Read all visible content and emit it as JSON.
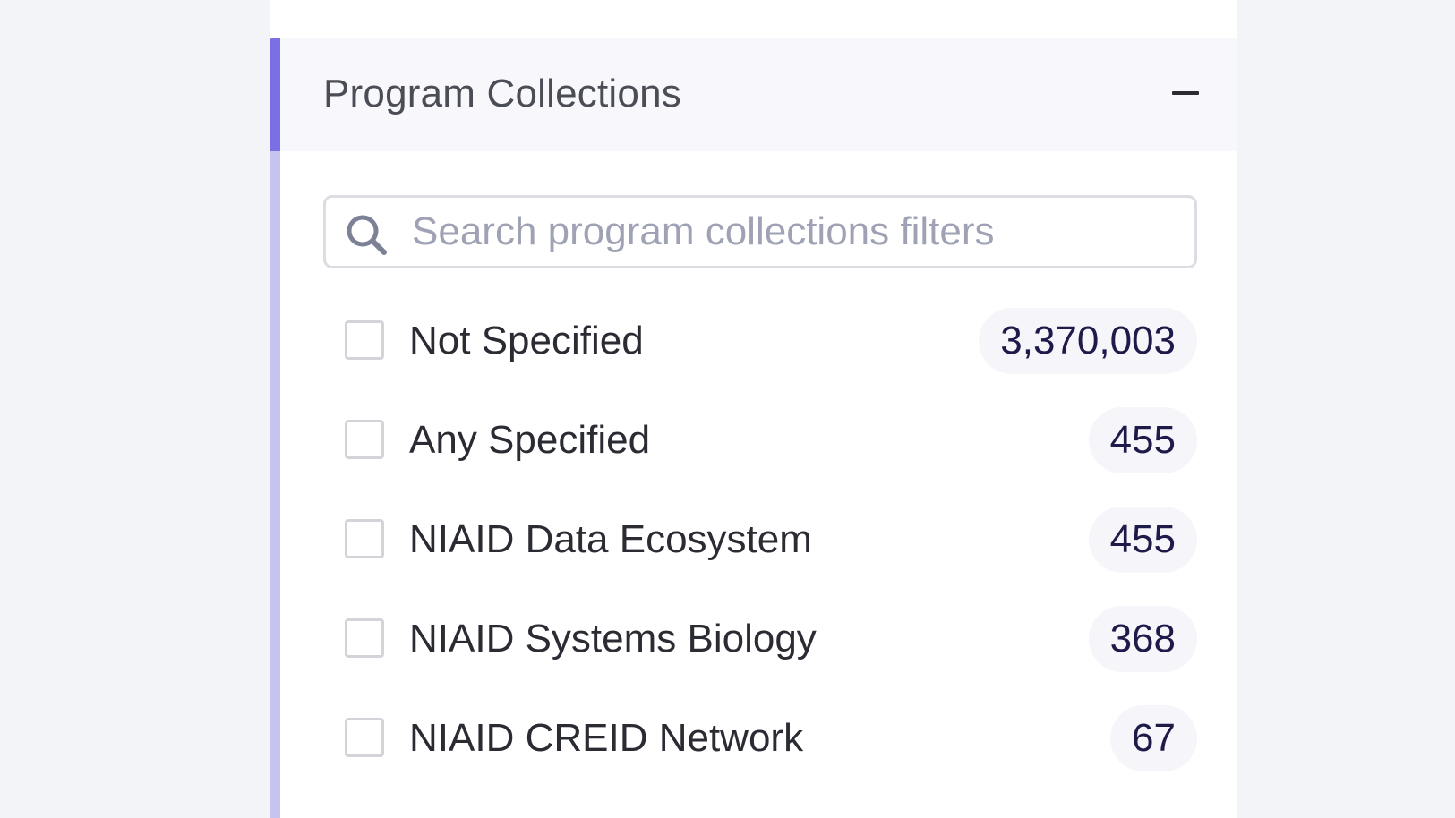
{
  "section": {
    "title": "Program Collections",
    "collapse_icon": "minus-icon"
  },
  "search": {
    "placeholder": "Search program collections filters",
    "value": "",
    "icon": "search-icon"
  },
  "filters": [
    {
      "label": "Not Specified",
      "count": "3,370,003",
      "checked": false
    },
    {
      "label": "Any Specified",
      "count": "455",
      "checked": false
    },
    {
      "label": "NIAID Data Ecosystem",
      "count": "455",
      "checked": false
    },
    {
      "label": "NIAID Systems Biology",
      "count": "368",
      "checked": false
    },
    {
      "label": "NIAID CREID Network",
      "count": "67",
      "checked": false
    }
  ],
  "colors": {
    "accent": "#7a6fe3",
    "accent_light": "#c5c3f0",
    "badge_text": "#1e1b4a"
  }
}
